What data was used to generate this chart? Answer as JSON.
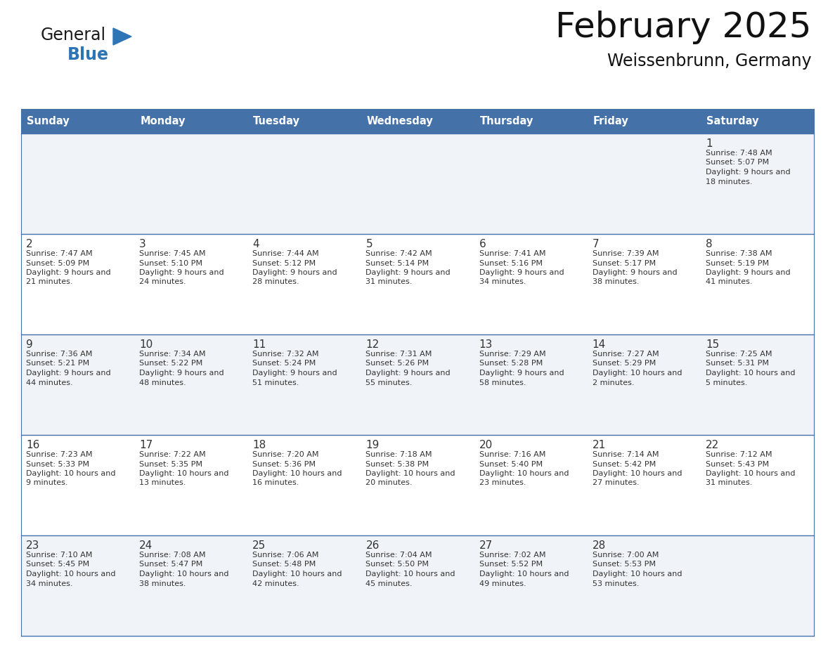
{
  "title": "February 2025",
  "subtitle": "Weissenbrunn, Germany",
  "days_of_week": [
    "Sunday",
    "Monday",
    "Tuesday",
    "Wednesday",
    "Thursday",
    "Friday",
    "Saturday"
  ],
  "header_bg": "#4472A8",
  "header_text": "#FFFFFF",
  "row_bg_odd": "#F0F4F8",
  "row_bg_even": "#FFFFFF",
  "border_color": "#4472A8",
  "day_num_color": "#333333",
  "text_color": "#333333",
  "calendar_data": [
    [
      null,
      null,
      null,
      null,
      null,
      null,
      {
        "day": 1,
        "sunrise": "7:48 AM",
        "sunset": "5:07 PM",
        "daylight": "9 hours and 18 minutes"
      }
    ],
    [
      {
        "day": 2,
        "sunrise": "7:47 AM",
        "sunset": "5:09 PM",
        "daylight": "9 hours and 21 minutes"
      },
      {
        "day": 3,
        "sunrise": "7:45 AM",
        "sunset": "5:10 PM",
        "daylight": "9 hours and 24 minutes"
      },
      {
        "day": 4,
        "sunrise": "7:44 AM",
        "sunset": "5:12 PM",
        "daylight": "9 hours and 28 minutes"
      },
      {
        "day": 5,
        "sunrise": "7:42 AM",
        "sunset": "5:14 PM",
        "daylight": "9 hours and 31 minutes"
      },
      {
        "day": 6,
        "sunrise": "7:41 AM",
        "sunset": "5:16 PM",
        "daylight": "9 hours and 34 minutes"
      },
      {
        "day": 7,
        "sunrise": "7:39 AM",
        "sunset": "5:17 PM",
        "daylight": "9 hours and 38 minutes"
      },
      {
        "day": 8,
        "sunrise": "7:38 AM",
        "sunset": "5:19 PM",
        "daylight": "9 hours and 41 minutes"
      }
    ],
    [
      {
        "day": 9,
        "sunrise": "7:36 AM",
        "sunset": "5:21 PM",
        "daylight": "9 hours and 44 minutes"
      },
      {
        "day": 10,
        "sunrise": "7:34 AM",
        "sunset": "5:22 PM",
        "daylight": "9 hours and 48 minutes"
      },
      {
        "day": 11,
        "sunrise": "7:32 AM",
        "sunset": "5:24 PM",
        "daylight": "9 hours and 51 minutes"
      },
      {
        "day": 12,
        "sunrise": "7:31 AM",
        "sunset": "5:26 PM",
        "daylight": "9 hours and 55 minutes"
      },
      {
        "day": 13,
        "sunrise": "7:29 AM",
        "sunset": "5:28 PM",
        "daylight": "9 hours and 58 minutes"
      },
      {
        "day": 14,
        "sunrise": "7:27 AM",
        "sunset": "5:29 PM",
        "daylight": "10 hours and 2 minutes"
      },
      {
        "day": 15,
        "sunrise": "7:25 AM",
        "sunset": "5:31 PM",
        "daylight": "10 hours and 5 minutes"
      }
    ],
    [
      {
        "day": 16,
        "sunrise": "7:23 AM",
        "sunset": "5:33 PM",
        "daylight": "10 hours and 9 minutes"
      },
      {
        "day": 17,
        "sunrise": "7:22 AM",
        "sunset": "5:35 PM",
        "daylight": "10 hours and 13 minutes"
      },
      {
        "day": 18,
        "sunrise": "7:20 AM",
        "sunset": "5:36 PM",
        "daylight": "10 hours and 16 minutes"
      },
      {
        "day": 19,
        "sunrise": "7:18 AM",
        "sunset": "5:38 PM",
        "daylight": "10 hours and 20 minutes"
      },
      {
        "day": 20,
        "sunrise": "7:16 AM",
        "sunset": "5:40 PM",
        "daylight": "10 hours and 23 minutes"
      },
      {
        "day": 21,
        "sunrise": "7:14 AM",
        "sunset": "5:42 PM",
        "daylight": "10 hours and 27 minutes"
      },
      {
        "day": 22,
        "sunrise": "7:12 AM",
        "sunset": "5:43 PM",
        "daylight": "10 hours and 31 minutes"
      }
    ],
    [
      {
        "day": 23,
        "sunrise": "7:10 AM",
        "sunset": "5:45 PM",
        "daylight": "10 hours and 34 minutes"
      },
      {
        "day": 24,
        "sunrise": "7:08 AM",
        "sunset": "5:47 PM",
        "daylight": "10 hours and 38 minutes"
      },
      {
        "day": 25,
        "sunrise": "7:06 AM",
        "sunset": "5:48 PM",
        "daylight": "10 hours and 42 minutes"
      },
      {
        "day": 26,
        "sunrise": "7:04 AM",
        "sunset": "5:50 PM",
        "daylight": "10 hours and 45 minutes"
      },
      {
        "day": 27,
        "sunrise": "7:02 AM",
        "sunset": "5:52 PM",
        "daylight": "10 hours and 49 minutes"
      },
      {
        "day": 28,
        "sunrise": "7:00 AM",
        "sunset": "5:53 PM",
        "daylight": "10 hours and 53 minutes"
      },
      null
    ]
  ],
  "logo_text_general": "General",
  "logo_text_blue": "Blue",
  "logo_triangle_color": "#2E75B6",
  "logo_general_color": "#1A1A1A"
}
